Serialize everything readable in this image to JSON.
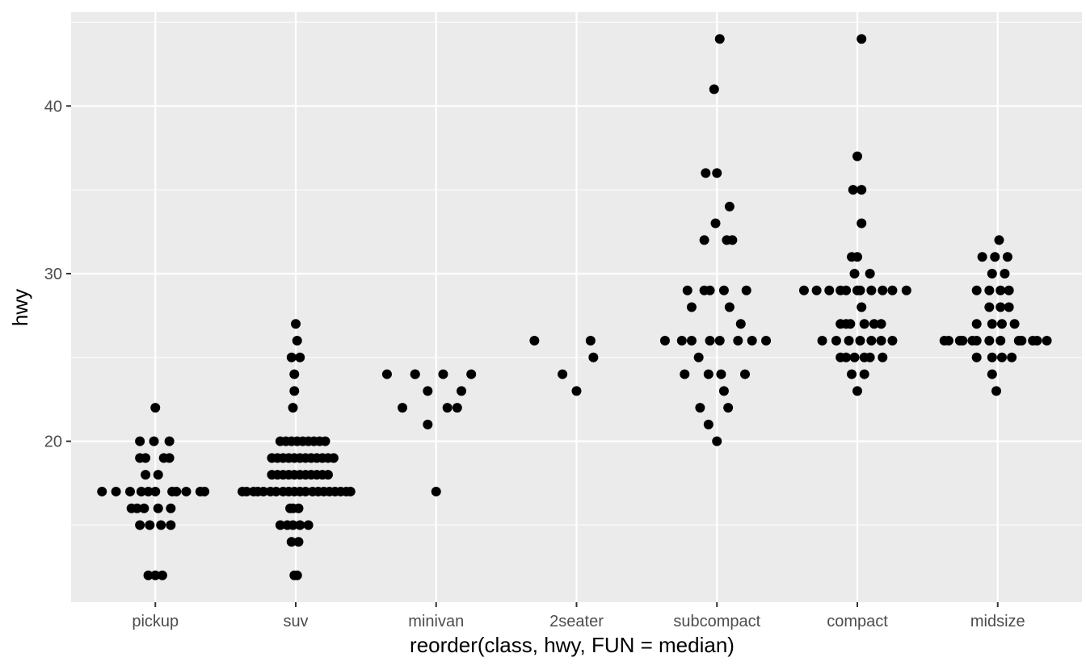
{
  "chart_data": {
    "type": "scatter",
    "subtype": "jittered strip plot",
    "xlabel": "reorder(class, hwy, FUN = median)",
    "ylabel": "hwy",
    "categories": [
      "pickup",
      "suv",
      "minivan",
      "2seater",
      "subcompact",
      "compact",
      "midsize"
    ],
    "ylim": [
      10.4,
      45.6
    ],
    "yticks": [
      20,
      30,
      40
    ],
    "grid": true,
    "legend": "none",
    "colors": {
      "panel": "#ebebeb",
      "grid": "#ffffff",
      "point": "#000000",
      "tick_text": "#4d4d4d",
      "title_text": "#000000"
    },
    "points": [
      [
        "pickup",
        -0.38,
        17
      ],
      [
        "pickup",
        -0.28,
        17
      ],
      [
        "pickup",
        -0.18,
        17
      ],
      [
        "pickup",
        -0.1,
        17
      ],
      [
        "pickup",
        -0.05,
        17
      ],
      [
        "pickup",
        0.0,
        17
      ],
      [
        "pickup",
        0.12,
        17
      ],
      [
        "pickup",
        0.15,
        17
      ],
      [
        "pickup",
        0.22,
        17
      ],
      [
        "pickup",
        0.32,
        17
      ],
      [
        "pickup",
        0.35,
        17
      ],
      [
        "pickup",
        -0.17,
        16
      ],
      [
        "pickup",
        -0.13,
        16
      ],
      [
        "pickup",
        -0.08,
        16
      ],
      [
        "pickup",
        0.02,
        16
      ],
      [
        "pickup",
        0.11,
        16
      ],
      [
        "pickup",
        -0.11,
        15
      ],
      [
        "pickup",
        -0.04,
        15
      ],
      [
        "pickup",
        0.04,
        15
      ],
      [
        "pickup",
        0.11,
        15
      ],
      [
        "pickup",
        -0.11,
        19
      ],
      [
        "pickup",
        -0.07,
        19
      ],
      [
        "pickup",
        0.06,
        19
      ],
      [
        "pickup",
        0.1,
        19
      ],
      [
        "pickup",
        -0.11,
        20
      ],
      [
        "pickup",
        -0.01,
        20
      ],
      [
        "pickup",
        0.1,
        20
      ],
      [
        "pickup",
        -0.07,
        18
      ],
      [
        "pickup",
        0.02,
        18
      ],
      [
        "pickup",
        0.0,
        22
      ],
      [
        "pickup",
        -0.05,
        12
      ],
      [
        "pickup",
        0.0,
        12
      ],
      [
        "pickup",
        0.05,
        12
      ],
      [
        "suv",
        -0.38,
        17
      ],
      [
        "suv",
        -0.35,
        17
      ],
      [
        "suv",
        -0.3,
        17
      ],
      [
        "suv",
        -0.27,
        17
      ],
      [
        "suv",
        -0.23,
        17
      ],
      [
        "suv",
        -0.18,
        17
      ],
      [
        "suv",
        -0.14,
        17
      ],
      [
        "suv",
        -0.09,
        17
      ],
      [
        "suv",
        -0.05,
        17
      ],
      [
        "suv",
        -0.01,
        17
      ],
      [
        "suv",
        0.03,
        17
      ],
      [
        "suv",
        0.07,
        17
      ],
      [
        "suv",
        0.12,
        17
      ],
      [
        "suv",
        0.16,
        17
      ],
      [
        "suv",
        0.2,
        17
      ],
      [
        "suv",
        0.24,
        17
      ],
      [
        "suv",
        0.28,
        17
      ],
      [
        "suv",
        0.32,
        17
      ],
      [
        "suv",
        0.36,
        17
      ],
      [
        "suv",
        0.39,
        17
      ],
      [
        "suv",
        -0.17,
        18
      ],
      [
        "suv",
        -0.13,
        18
      ],
      [
        "suv",
        -0.09,
        18
      ],
      [
        "suv",
        -0.05,
        18
      ],
      [
        "suv",
        -0.01,
        18
      ],
      [
        "suv",
        0.03,
        18
      ],
      [
        "suv",
        0.07,
        18
      ],
      [
        "suv",
        0.11,
        18
      ],
      [
        "suv",
        0.15,
        18
      ],
      [
        "suv",
        0.19,
        18
      ],
      [
        "suv",
        0.23,
        18
      ],
      [
        "suv",
        -0.17,
        19
      ],
      [
        "suv",
        -0.13,
        19
      ],
      [
        "suv",
        -0.09,
        19
      ],
      [
        "suv",
        -0.05,
        19
      ],
      [
        "suv",
        -0.01,
        19
      ],
      [
        "suv",
        0.03,
        19
      ],
      [
        "suv",
        0.07,
        19
      ],
      [
        "suv",
        0.11,
        19
      ],
      [
        "suv",
        0.15,
        19
      ],
      [
        "suv",
        0.19,
        19
      ],
      [
        "suv",
        0.23,
        19
      ],
      [
        "suv",
        0.27,
        19
      ],
      [
        "suv",
        -0.11,
        20
      ],
      [
        "suv",
        -0.07,
        20
      ],
      [
        "suv",
        -0.03,
        20
      ],
      [
        "suv",
        0.01,
        20
      ],
      [
        "suv",
        0.05,
        20
      ],
      [
        "suv",
        0.09,
        20
      ],
      [
        "suv",
        0.13,
        20
      ],
      [
        "suv",
        0.17,
        20
      ],
      [
        "suv",
        0.21,
        20
      ],
      [
        "suv",
        -0.04,
        16
      ],
      [
        "suv",
        0.02,
        16
      ],
      [
        "suv",
        -0.02,
        16
      ],
      [
        "suv",
        -0.11,
        15
      ],
      [
        "suv",
        -0.06,
        15
      ],
      [
        "suv",
        -0.02,
        15
      ],
      [
        "suv",
        0.03,
        15
      ],
      [
        "suv",
        0.09,
        15
      ],
      [
        "suv",
        -0.03,
        14
      ],
      [
        "suv",
        0.02,
        14
      ],
      [
        "suv",
        -0.01,
        12
      ],
      [
        "suv",
        0.01,
        12
      ],
      [
        "suv",
        -0.02,
        22
      ],
      [
        "suv",
        -0.01,
        23
      ],
      [
        "suv",
        -0.01,
        24
      ],
      [
        "suv",
        -0.03,
        25
      ],
      [
        "suv",
        0.03,
        25
      ],
      [
        "suv",
        0.01,
        26
      ],
      [
        "suv",
        0.0,
        27
      ],
      [
        "minivan",
        -0.35,
        24
      ],
      [
        "minivan",
        -0.15,
        24
      ],
      [
        "minivan",
        -0.15,
        24
      ],
      [
        "minivan",
        0.05,
        24
      ],
      [
        "minivan",
        0.25,
        24
      ],
      [
        "minivan",
        -0.24,
        22
      ],
      [
        "minivan",
        0.08,
        22
      ],
      [
        "minivan",
        0.15,
        22
      ],
      [
        "minivan",
        -0.06,
        23
      ],
      [
        "minivan",
        0.18,
        23
      ],
      [
        "minivan",
        -0.06,
        21
      ],
      [
        "minivan",
        0.0,
        17
      ],
      [
        "2seater",
        -0.3,
        26
      ],
      [
        "2seater",
        0.1,
        26
      ],
      [
        "2seater",
        0.12,
        25
      ],
      [
        "2seater",
        -0.1,
        24
      ],
      [
        "2seater",
        0.0,
        23
      ],
      [
        "subcompact",
        -0.37,
        26
      ],
      [
        "subcompact",
        -0.25,
        26
      ],
      [
        "subcompact",
        -0.18,
        26
      ],
      [
        "subcompact",
        -0.05,
        26
      ],
      [
        "subcompact",
        0.02,
        26
      ],
      [
        "subcompact",
        0.15,
        26
      ],
      [
        "subcompact",
        0.25,
        26
      ],
      [
        "subcompact",
        0.35,
        26
      ],
      [
        "subcompact",
        -0.13,
        25
      ],
      [
        "subcompact",
        -0.23,
        24
      ],
      [
        "subcompact",
        -0.06,
        24
      ],
      [
        "subcompact",
        0.03,
        24
      ],
      [
        "subcompact",
        0.2,
        24
      ],
      [
        "subcompact",
        0.05,
        23
      ],
      [
        "subcompact",
        -0.12,
        22
      ],
      [
        "subcompact",
        0.08,
        22
      ],
      [
        "subcompact",
        -0.06,
        21
      ],
      [
        "subcompact",
        0.0,
        20
      ],
      [
        "subcompact",
        0.17,
        27
      ],
      [
        "subcompact",
        -0.18,
        28
      ],
      [
        "subcompact",
        0.09,
        28
      ],
      [
        "subcompact",
        -0.21,
        29
      ],
      [
        "subcompact",
        -0.09,
        29
      ],
      [
        "subcompact",
        -0.05,
        29
      ],
      [
        "subcompact",
        0.05,
        29
      ],
      [
        "subcompact",
        0.21,
        29
      ],
      [
        "subcompact",
        -0.09,
        32
      ],
      [
        "subcompact",
        0.07,
        32
      ],
      [
        "subcompact",
        0.11,
        32
      ],
      [
        "subcompact",
        -0.01,
        33
      ],
      [
        "subcompact",
        0.09,
        34
      ],
      [
        "subcompact",
        -0.08,
        36
      ],
      [
        "subcompact",
        0.0,
        36
      ],
      [
        "subcompact",
        -0.02,
        41
      ],
      [
        "subcompact",
        0.02,
        44
      ],
      [
        "compact",
        -0.38,
        29
      ],
      [
        "compact",
        -0.29,
        29
      ],
      [
        "compact",
        -0.2,
        29
      ],
      [
        "compact",
        -0.12,
        29
      ],
      [
        "compact",
        -0.08,
        29
      ],
      [
        "compact",
        0.0,
        29
      ],
      [
        "compact",
        0.02,
        29
      ],
      [
        "compact",
        0.1,
        29
      ],
      [
        "compact",
        0.18,
        29
      ],
      [
        "compact",
        0.25,
        29
      ],
      [
        "compact",
        0.35,
        29
      ],
      [
        "compact",
        -0.25,
        26
      ],
      [
        "compact",
        -0.15,
        26
      ],
      [
        "compact",
        -0.06,
        26
      ],
      [
        "compact",
        0.02,
        26
      ],
      [
        "compact",
        0.1,
        26
      ],
      [
        "compact",
        0.17,
        26
      ],
      [
        "compact",
        0.25,
        26
      ],
      [
        "compact",
        -0.12,
        27
      ],
      [
        "compact",
        -0.08,
        27
      ],
      [
        "compact",
        -0.05,
        27
      ],
      [
        "compact",
        0.05,
        27
      ],
      [
        "compact",
        0.12,
        27
      ],
      [
        "compact",
        0.17,
        27
      ],
      [
        "compact",
        -0.12,
        25
      ],
      [
        "compact",
        -0.08,
        25
      ],
      [
        "compact",
        -0.02,
        25
      ],
      [
        "compact",
        0.05,
        25
      ],
      [
        "compact",
        0.09,
        25
      ],
      [
        "compact",
        0.18,
        25
      ],
      [
        "compact",
        -0.04,
        24
      ],
      [
        "compact",
        0.05,
        24
      ],
      [
        "compact",
        0.0,
        23
      ],
      [
        "compact",
        0.03,
        28
      ],
      [
        "compact",
        -0.02,
        30
      ],
      [
        "compact",
        0.09,
        30
      ],
      [
        "compact",
        -0.04,
        31
      ],
      [
        "compact",
        0.0,
        31
      ],
      [
        "compact",
        0.03,
        33
      ],
      [
        "compact",
        -0.03,
        35
      ],
      [
        "compact",
        0.03,
        35
      ],
      [
        "compact",
        0.0,
        37
      ],
      [
        "compact",
        0.03,
        44
      ],
      [
        "midsize",
        -0.38,
        26
      ],
      [
        "midsize",
        -0.35,
        26
      ],
      [
        "midsize",
        -0.27,
        26
      ],
      [
        "midsize",
        -0.25,
        26
      ],
      [
        "midsize",
        -0.18,
        26
      ],
      [
        "midsize",
        -0.15,
        26
      ],
      [
        "midsize",
        -0.06,
        26
      ],
      [
        "midsize",
        0.02,
        26
      ],
      [
        "midsize",
        0.15,
        26
      ],
      [
        "midsize",
        0.17,
        26
      ],
      [
        "midsize",
        0.25,
        26
      ],
      [
        "midsize",
        0.28,
        26
      ],
      [
        "midsize",
        0.35,
        26
      ],
      [
        "midsize",
        -0.15,
        25
      ],
      [
        "midsize",
        -0.04,
        25
      ],
      [
        "midsize",
        0.03,
        25
      ],
      [
        "midsize",
        0.1,
        25
      ],
      [
        "midsize",
        -0.04,
        24
      ],
      [
        "midsize",
        -0.01,
        23
      ],
      [
        "midsize",
        -0.15,
        27
      ],
      [
        "midsize",
        -0.04,
        27
      ],
      [
        "midsize",
        0.03,
        27
      ],
      [
        "midsize",
        0.12,
        27
      ],
      [
        "midsize",
        -0.06,
        28
      ],
      [
        "midsize",
        0.02,
        28
      ],
      [
        "midsize",
        0.08,
        28
      ],
      [
        "midsize",
        -0.15,
        29
      ],
      [
        "midsize",
        -0.06,
        29
      ],
      [
        "midsize",
        0.02,
        29
      ],
      [
        "midsize",
        0.08,
        29
      ],
      [
        "midsize",
        -0.04,
        30
      ],
      [
        "midsize",
        0.05,
        30
      ],
      [
        "midsize",
        -0.11,
        31
      ],
      [
        "midsize",
        -0.02,
        31
      ],
      [
        "midsize",
        0.07,
        31
      ],
      [
        "midsize",
        0.01,
        32
      ]
    ]
  }
}
